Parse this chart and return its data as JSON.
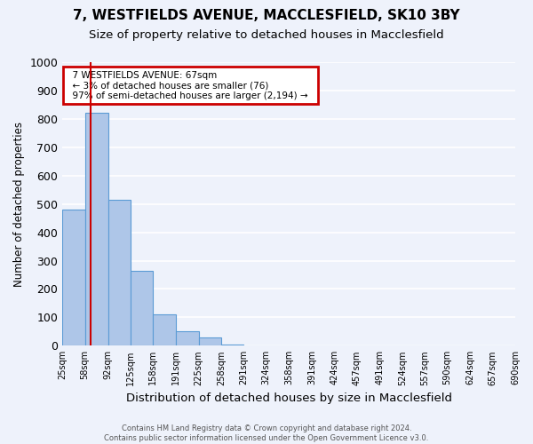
{
  "title": "7, WESTFIELDS AVENUE, MACCLESFIELD, SK10 3BY",
  "subtitle": "Size of property relative to detached houses in Macclesfield",
  "xlabel": "Distribution of detached houses by size in Macclesfield",
  "ylabel": "Number of detached properties",
  "footer_line1": "Contains HM Land Registry data © Crown copyright and database right 2024.",
  "footer_line2": "Contains public sector information licensed under the Open Government Licence v3.0.",
  "annotation_line1": "  7 WESTFIELDS AVENUE: 67sqm  ",
  "annotation_line2": "  ← 3% of detached houses are smaller (76)  ",
  "annotation_line3": "  97% of semi-detached houses are larger (2,194) →  ",
  "bin_labels": [
    "25sqm",
    "58sqm",
    "92sqm",
    "125sqm",
    "158sqm",
    "191sqm",
    "225sqm",
    "258sqm",
    "291sqm",
    "324sqm",
    "358sqm",
    "391sqm",
    "424sqm",
    "457sqm",
    "491sqm",
    "524sqm",
    "557sqm",
    "590sqm",
    "624sqm",
    "657sqm",
    "690sqm"
  ],
  "bar_heights": [
    480,
    820,
    515,
    265,
    110,
    50,
    30,
    5,
    0,
    0,
    0,
    0,
    0,
    0,
    0,
    0,
    0,
    0,
    0,
    0
  ],
  "bar_color": "#aec6e8",
  "bar_edge_color": "#5b9bd5",
  "property_line_x": 67,
  "bin_edges": [
    25,
    58,
    92,
    125,
    158,
    191,
    225,
    258,
    291,
    324,
    358,
    391,
    424,
    457,
    491,
    524,
    557,
    590,
    624,
    657,
    690
  ],
  "ylim": [
    0,
    1000
  ],
  "yticks": [
    0,
    100,
    200,
    300,
    400,
    500,
    600,
    700,
    800,
    900,
    1000
  ],
  "background_color": "#eef2fb",
  "plot_bg_color": "#eef2fb",
  "grid_color": "#ffffff",
  "title_fontsize": 11,
  "subtitle_fontsize": 9.5,
  "annotation_box_color": "#cc0000",
  "red_line_color": "#cc0000"
}
